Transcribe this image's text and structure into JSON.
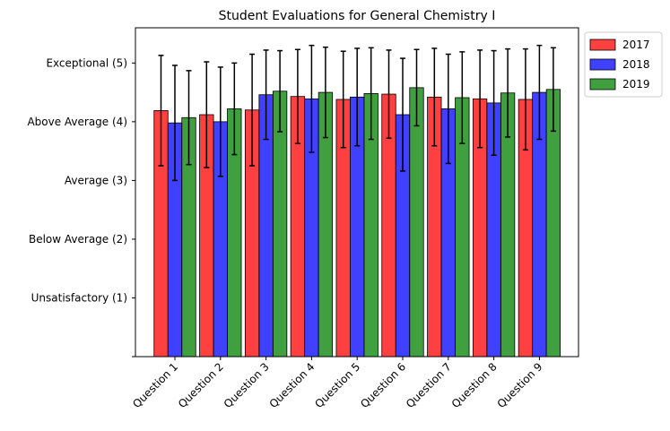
{
  "chart_data": {
    "type": "bar",
    "title": "Student Evaluations for General Chemistry I",
    "xlabel": "",
    "ylabel": "",
    "categories": [
      "Question 1",
      "Question 2",
      "Question 3",
      "Question 4",
      "Question 5",
      "Question 6",
      "Question 7",
      "Question 8",
      "Question 9"
    ],
    "y_ticks": [
      {
        "value": 0,
        "label": ""
      },
      {
        "value": 1,
        "label": "Unsatisfactory (1)"
      },
      {
        "value": 2,
        "label": "Below Average (2)"
      },
      {
        "value": 3,
        "label": "Average (3)"
      },
      {
        "value": 4,
        "label": "Above Average (4)"
      },
      {
        "value": 5,
        "label": "Exceptional (5)"
      }
    ],
    "ylim": [
      0,
      5.6
    ],
    "legend_position": "outside-top-right",
    "series": [
      {
        "name": "2017",
        "color": "#ff0000",
        "values": [
          4.19,
          4.12,
          4.2,
          4.43,
          4.38,
          4.47,
          4.42,
          4.39,
          4.38
        ],
        "errors": [
          0.94,
          0.9,
          0.95,
          0.8,
          0.82,
          0.75,
          0.83,
          0.83,
          0.86
        ]
      },
      {
        "name": "2018",
        "color": "#0000ff",
        "values": [
          3.98,
          4.0,
          4.46,
          4.39,
          4.42,
          4.12,
          4.22,
          4.32,
          4.5
        ],
        "errors": [
          0.98,
          0.93,
          0.76,
          0.91,
          0.83,
          0.96,
          0.93,
          0.89,
          0.8
        ]
      },
      {
        "name": "2019",
        "color": "#008000",
        "values": [
          4.07,
          4.22,
          4.52,
          4.5,
          4.48,
          4.58,
          4.41,
          4.49,
          4.55
        ],
        "errors": [
          0.8,
          0.78,
          0.69,
          0.77,
          0.78,
          0.65,
          0.78,
          0.75,
          0.71
        ]
      }
    ]
  }
}
